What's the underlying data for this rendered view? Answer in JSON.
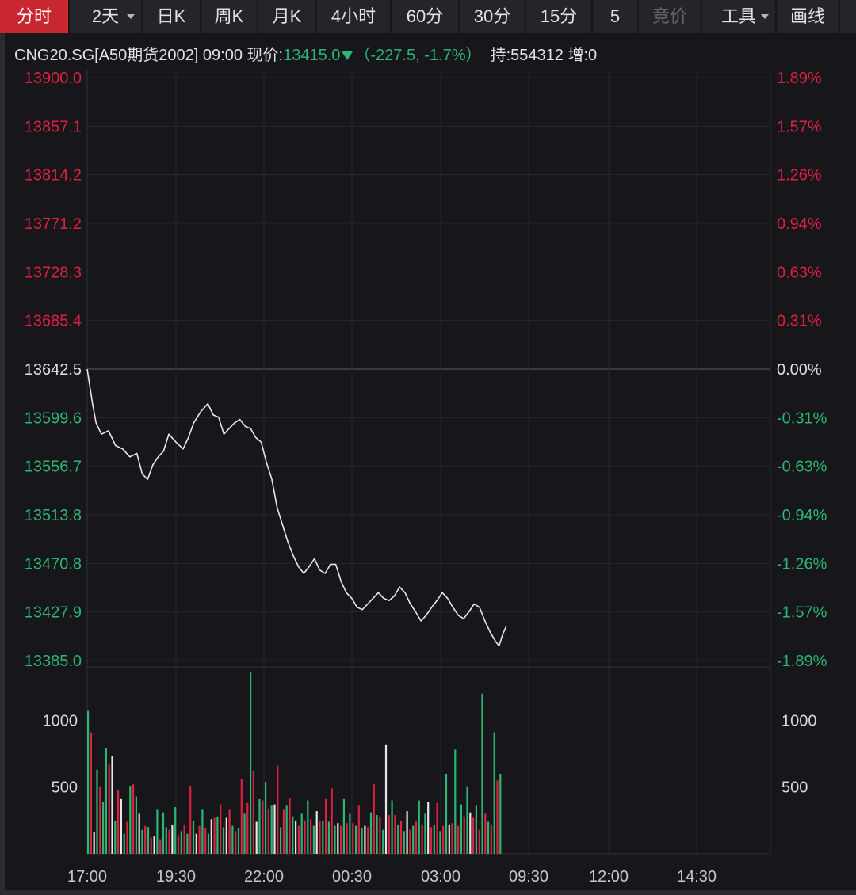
{
  "tabs": [
    {
      "label": "分时",
      "state": "active",
      "dropdown": false
    },
    {
      "label": "2天",
      "state": "normal",
      "dropdown": true
    },
    {
      "label": "日K",
      "state": "normal",
      "dropdown": false
    },
    {
      "label": "周K",
      "state": "normal",
      "dropdown": false
    },
    {
      "label": "月K",
      "state": "normal",
      "dropdown": false
    },
    {
      "label": "4小时",
      "state": "normal",
      "dropdown": false
    },
    {
      "label": "60分",
      "state": "normal",
      "dropdown": false
    },
    {
      "label": "30分",
      "state": "normal",
      "dropdown": false
    },
    {
      "label": "15分",
      "state": "normal",
      "dropdown": false
    },
    {
      "label": "5",
      "state": "normal",
      "dropdown": false
    },
    {
      "label": "竞价",
      "state": "disabled",
      "dropdown": false
    },
    {
      "label": "工具",
      "state": "normal",
      "dropdown": true
    },
    {
      "label": "画线",
      "state": "normal",
      "dropdown": false
    }
  ],
  "info": {
    "symbol": "CNG20.SG[A50期货2002]",
    "time": "09:00",
    "price_label": "现价:",
    "price": "13415.0",
    "change": "-227.5",
    "change_pct": "-1.7%",
    "hold_label": "持:",
    "hold": "554312",
    "inc_label": "增:",
    "inc": "0"
  },
  "colors": {
    "up": "#e0203f",
    "down": "#2bb673",
    "neutral": "#e0e0e0",
    "price_line": "#e8e8e8",
    "background": "#16161b",
    "grid": "#26272d",
    "active_tab": "#c8272f"
  },
  "chart_data": {
    "type": "line",
    "reference_price": 13642.5,
    "price_axis": {
      "ylim": [
        13385.0,
        13900.0
      ],
      "left_ticks": [
        "13900.0",
        "13857.1",
        "13814.2",
        "13771.2",
        "13728.3",
        "13685.4",
        "13642.5",
        "13599.6",
        "13556.7",
        "13513.8",
        "13470.8",
        "13427.9",
        "13385.0"
      ],
      "right_ticks": [
        "1.89%",
        "1.57%",
        "1.26%",
        "0.94%",
        "0.63%",
        "0.31%",
        "0.00%",
        "-0.31%",
        "-0.63%",
        "-0.94%",
        "-1.26%",
        "-1.57%",
        "-1.89%"
      ]
    },
    "x_axis": {
      "tick_labels": [
        "17:00",
        "19:30",
        "22:00",
        "00:30",
        "03:00",
        "09:30",
        "12:00",
        "14:30"
      ]
    },
    "price_series": {
      "x_hours_from_1700": [
        0.0,
        0.15,
        0.25,
        0.4,
        0.6,
        0.8,
        1.0,
        1.2,
        1.4,
        1.55,
        1.7,
        1.85,
        2.0,
        2.15,
        2.3,
        2.5,
        2.7,
        2.85,
        3.0,
        3.2,
        3.4,
        3.55,
        3.7,
        3.85,
        4.0,
        4.15,
        4.3,
        4.45,
        4.6,
        4.75,
        4.9,
        5.05,
        5.2,
        5.35,
        5.5,
        5.65,
        5.8,
        5.95,
        6.1,
        6.25,
        6.4,
        6.55,
        6.7,
        6.85,
        7.0,
        7.15,
        7.3,
        7.45,
        7.6,
        7.75,
        7.9,
        8.05,
        8.2,
        8.35,
        8.5,
        8.65,
        8.8,
        8.95,
        9.1,
        9.25,
        9.4,
        9.55,
        9.7,
        9.85,
        10.0,
        10.15,
        10.3,
        10.45,
        10.6,
        10.75,
        10.9,
        11.05,
        11.2,
        11.35,
        11.5,
        11.6,
        11.7,
        11.8
      ],
      "y": [
        13642.5,
        13612,
        13595,
        13585,
        13588,
        13575,
        13572,
        13565,
        13568,
        13550,
        13545,
        13558,
        13565,
        13570,
        13585,
        13578,
        13572,
        13582,
        13595,
        13605,
        13612,
        13602,
        13600,
        13585,
        13590,
        13595,
        13598,
        13592,
        13590,
        13582,
        13578,
        13560,
        13545,
        13520,
        13505,
        13490,
        13478,
        13468,
        13462,
        13468,
        13475,
        13465,
        13462,
        13470,
        13470,
        13455,
        13445,
        13440,
        13432,
        13430,
        13435,
        13440,
        13445,
        13440,
        13438,
        13442,
        13450,
        13445,
        13435,
        13428,
        13420,
        13425,
        13432,
        13438,
        13445,
        13440,
        13432,
        13425,
        13422,
        13428,
        13435,
        13432,
        13420,
        13410,
        13402,
        13398,
        13408,
        13415
      ]
    },
    "volume_axis": {
      "ylim": [
        0,
        1400
      ],
      "ticks": [
        "1000",
        "500"
      ]
    },
    "volume_series": {
      "values": [
        1070,
        910,
        160,
        630,
        500,
        390,
        790,
        670,
        730,
        250,
        480,
        410,
        150,
        240,
        510,
        520,
        430,
        300,
        180,
        210,
        200,
        120,
        130,
        330,
        110,
        310,
        200,
        180,
        220,
        350,
        140,
        170,
        220,
        150,
        510,
        250,
        150,
        210,
        330,
        190,
        150,
        260,
        270,
        280,
        370,
        200,
        270,
        330,
        210,
        170,
        190,
        560,
        300,
        380,
        1360,
        620,
        240,
        410,
        400,
        540,
        340,
        360,
        370,
        660,
        200,
        330,
        360,
        420,
        280,
        250,
        210,
        300,
        250,
        400,
        260,
        210,
        320,
        250,
        250,
        410,
        240,
        490,
        210,
        230,
        210,
        410,
        230,
        300,
        230,
        210,
        360,
        190,
        210,
        200,
        310,
        520,
        290,
        280,
        180,
        820,
        290,
        400,
        290,
        220,
        250,
        170,
        320,
        180,
        210,
        250,
        400,
        220,
        300,
        390,
        200,
        220,
        380,
        170,
        210,
        600,
        220,
        230,
        780,
        210,
        370,
        280,
        500,
        310,
        270,
        360,
        180,
        1200,
        300,
        240,
        220,
        910,
        550,
        600
      ],
      "directions": [
        "d",
        "u",
        "n",
        "d",
        "u",
        "d",
        "d",
        "u",
        "n",
        "d",
        "u",
        "n",
        "d",
        "u",
        "d",
        "u",
        "d",
        "n",
        "d",
        "u",
        "d",
        "u",
        "n",
        "d",
        "u",
        "d",
        "d",
        "u",
        "n",
        "d",
        "u",
        "d",
        "u",
        "d",
        "u",
        "d",
        "n",
        "u",
        "d",
        "u",
        "d",
        "n",
        "u",
        "d",
        "u",
        "d",
        "n",
        "u",
        "d",
        "u",
        "d",
        "u",
        "d",
        "u",
        "d",
        "u",
        "n",
        "d",
        "u",
        "d",
        "u",
        "d",
        "n",
        "u",
        "d",
        "u",
        "d",
        "u",
        "d",
        "n",
        "u",
        "d",
        "u",
        "d",
        "u",
        "d",
        "n",
        "u",
        "d",
        "u",
        "d",
        "u",
        "d",
        "n",
        "u",
        "d",
        "u",
        "d",
        "u",
        "d",
        "u",
        "d",
        "n",
        "u",
        "d",
        "u",
        "d",
        "u",
        "d",
        "n",
        "u",
        "d",
        "u",
        "d",
        "u",
        "d",
        "n",
        "u",
        "d",
        "u",
        "d",
        "u",
        "d",
        "n",
        "u",
        "d",
        "u",
        "d",
        "u",
        "d",
        "n",
        "u",
        "d",
        "u",
        "d",
        "u",
        "d",
        "n",
        "u",
        "d",
        "u",
        "d",
        "u",
        "d",
        "u",
        "d",
        "u",
        "d"
      ]
    }
  }
}
